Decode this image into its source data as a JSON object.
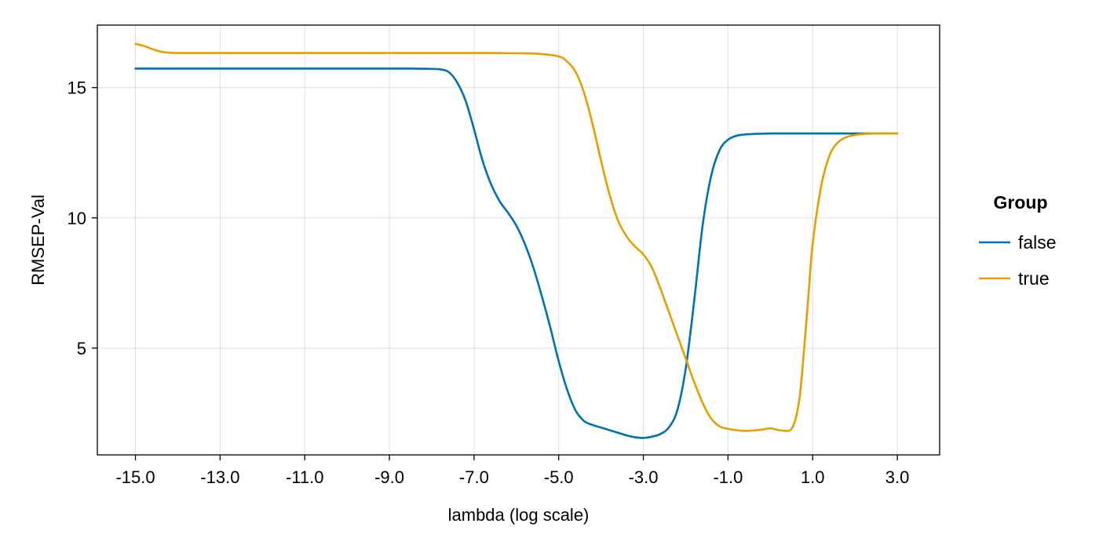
{
  "chart_data": {
    "type": "line",
    "title": "",
    "xlabel": "lambda (log scale)",
    "ylabel": "RMSEP-Val",
    "xlim": [
      -15.9,
      4.0
    ],
    "ylim": [
      0.9,
      17.4
    ],
    "x_ticks": [
      -15,
      -13,
      -11,
      -9,
      -7,
      -5,
      -3,
      -1,
      1,
      3
    ],
    "x_tick_labels": [
      "-15.0",
      "-13.0",
      "-11.0",
      "-9.0",
      "-7.0",
      "-5.0",
      "-3.0",
      "-1.0",
      "1.0",
      "3.0"
    ],
    "y_ticks": [
      5,
      10,
      15
    ],
    "y_tick_labels": [
      "5",
      "10",
      "15"
    ],
    "grid": true,
    "legend": {
      "title": "Group",
      "placement": "right"
    },
    "series": [
      {
        "name": "false",
        "color": "#0072b2",
        "x": [
          -15.0,
          -14.0,
          -13.0,
          -12.0,
          -11.0,
          -10.0,
          -9.0,
          -8.5,
          -8.0,
          -7.8,
          -7.6,
          -7.4,
          -7.2,
          -7.0,
          -6.8,
          -6.6,
          -6.4,
          -6.2,
          -6.0,
          -5.8,
          -5.6,
          -5.4,
          -5.2,
          -5.0,
          -4.8,
          -4.6,
          -4.4,
          -4.2,
          -4.0,
          -3.8,
          -3.6,
          -3.4,
          -3.2,
          -3.0,
          -2.8,
          -2.6,
          -2.4,
          -2.2,
          -2.0,
          -1.8,
          -1.6,
          -1.4,
          -1.2,
          -1.0,
          -0.8,
          -0.6,
          -0.4,
          -0.2,
          0.0,
          0.5,
          1.0,
          1.5,
          2.0,
          2.5,
          3.0
        ],
        "y": [
          15.73,
          15.73,
          15.73,
          15.73,
          15.73,
          15.73,
          15.73,
          15.73,
          15.72,
          15.7,
          15.6,
          15.2,
          14.5,
          13.4,
          12.2,
          11.3,
          10.65,
          10.2,
          9.7,
          9.0,
          8.1,
          7.0,
          5.8,
          4.5,
          3.4,
          2.6,
          2.2,
          2.05,
          1.95,
          1.85,
          1.75,
          1.65,
          1.58,
          1.55,
          1.6,
          1.7,
          1.95,
          2.6,
          4.2,
          6.8,
          9.7,
          11.6,
          12.6,
          13.0,
          13.15,
          13.2,
          13.22,
          13.23,
          13.24,
          13.24,
          13.24,
          13.24,
          13.24,
          13.24,
          13.24
        ]
      },
      {
        "name": "true",
        "color": "#e69f00",
        "x": [
          -15.0,
          -14.8,
          -14.6,
          -14.4,
          -14.2,
          -14.0,
          -13.0,
          -12.0,
          -11.0,
          -10.0,
          -9.0,
          -8.0,
          -7.0,
          -6.0,
          -5.5,
          -5.0,
          -4.8,
          -4.6,
          -4.4,
          -4.2,
          -4.0,
          -3.8,
          -3.6,
          -3.4,
          -3.2,
          -3.0,
          -2.8,
          -2.6,
          -2.4,
          -2.2,
          -2.0,
          -1.8,
          -1.6,
          -1.4,
          -1.2,
          -1.0,
          -0.8,
          -0.6,
          -0.4,
          -0.2,
          0.0,
          0.2,
          0.4,
          0.5,
          0.6,
          0.7,
          0.8,
          0.9,
          1.0,
          1.2,
          1.4,
          1.6,
          1.8,
          2.0,
          2.2,
          2.5,
          3.0
        ],
        "y": [
          16.68,
          16.6,
          16.48,
          16.38,
          16.34,
          16.33,
          16.33,
          16.33,
          16.33,
          16.33,
          16.33,
          16.33,
          16.33,
          16.32,
          16.3,
          16.2,
          16.0,
          15.6,
          14.8,
          13.6,
          12.2,
          10.9,
          9.9,
          9.3,
          8.9,
          8.6,
          8.1,
          7.3,
          6.4,
          5.5,
          4.6,
          3.7,
          2.9,
          2.3,
          2.0,
          1.9,
          1.85,
          1.82,
          1.84,
          1.87,
          1.92,
          1.85,
          1.82,
          1.9,
          2.3,
          3.2,
          5.0,
          7.0,
          9.0,
          11.2,
          12.4,
          12.9,
          13.1,
          13.18,
          13.22,
          13.24,
          13.24
        ]
      }
    ]
  }
}
